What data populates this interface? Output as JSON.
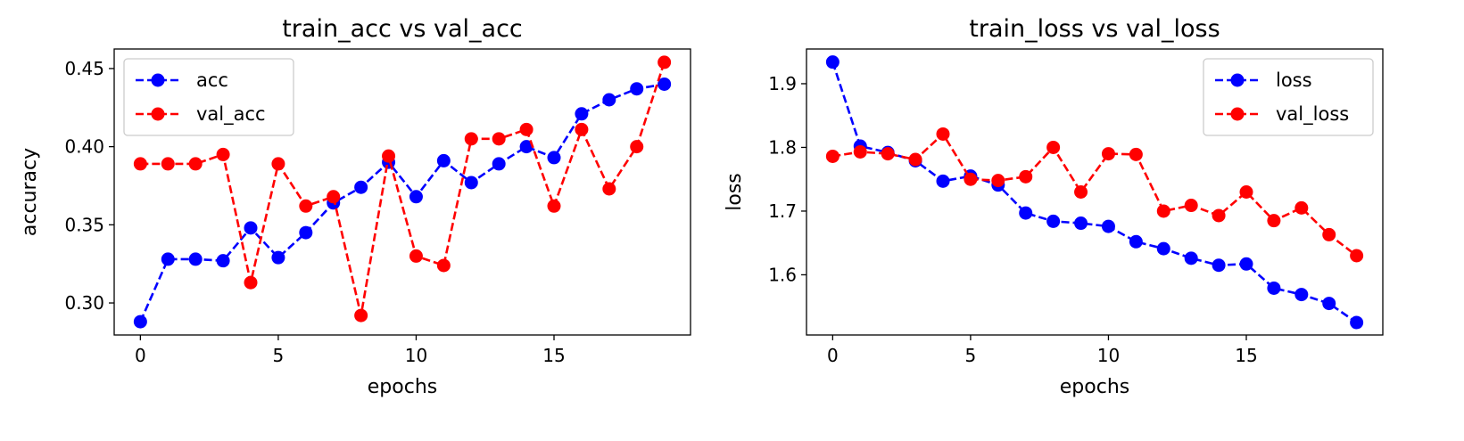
{
  "chart_data": [
    {
      "type": "line",
      "title": "train_acc vs val_acc",
      "xlabel": "epochs",
      "ylabel": "accuracy",
      "xlim": [
        -0.95,
        19.95
      ],
      "ylim": [
        0.2795,
        0.4625
      ],
      "xticks": [
        0,
        5,
        10,
        15
      ],
      "yticks": [
        0.3,
        0.35,
        0.4,
        0.45
      ],
      "ytick_labels": [
        "0.30",
        "0.35",
        "0.40",
        "0.45"
      ],
      "grid": false,
      "legend_position": "top-left",
      "x": [
        0,
        1,
        2,
        3,
        4,
        5,
        6,
        7,
        8,
        9,
        10,
        11,
        12,
        13,
        14,
        15,
        16,
        17,
        18,
        19
      ],
      "series": [
        {
          "name": "acc",
          "color": "#0000ff",
          "values": [
            0.288,
            0.328,
            0.328,
            0.327,
            0.348,
            0.329,
            0.345,
            0.364,
            0.374,
            0.39,
            0.368,
            0.391,
            0.377,
            0.389,
            0.4,
            0.393,
            0.421,
            0.43,
            0.437,
            0.44
          ]
        },
        {
          "name": "val_acc",
          "color": "#ff0000",
          "values": [
            0.389,
            0.389,
            0.389,
            0.395,
            0.313,
            0.389,
            0.362,
            0.368,
            0.292,
            0.394,
            0.33,
            0.324,
            0.405,
            0.405,
            0.411,
            0.362,
            0.411,
            0.373,
            0.4,
            0.454
          ]
        }
      ]
    },
    {
      "type": "line",
      "title": "train_loss vs val_loss",
      "xlabel": "epochs",
      "ylabel": "loss",
      "xlim": [
        -0.95,
        19.95
      ],
      "ylim": [
        1.5055,
        1.9545
      ],
      "xticks": [
        0,
        5,
        10,
        15
      ],
      "yticks": [
        1.6,
        1.7,
        1.8,
        1.9
      ],
      "ytick_labels": [
        "1.6",
        "1.7",
        "1.8",
        "1.9"
      ],
      "grid": false,
      "legend_position": "top-right",
      "x": [
        0,
        1,
        2,
        3,
        4,
        5,
        6,
        7,
        8,
        9,
        10,
        11,
        12,
        13,
        14,
        15,
        16,
        17,
        18,
        19
      ],
      "series": [
        {
          "name": "loss",
          "color": "#0000ff",
          "values": [
            1.934,
            1.802,
            1.792,
            1.779,
            1.747,
            1.755,
            1.741,
            1.697,
            1.684,
            1.681,
            1.676,
            1.652,
            1.641,
            1.626,
            1.615,
            1.617,
            1.579,
            1.569,
            1.555,
            1.525
          ]
        },
        {
          "name": "val_loss",
          "color": "#ff0000",
          "values": [
            1.786,
            1.793,
            1.79,
            1.781,
            1.821,
            1.75,
            1.748,
            1.754,
            1.8,
            1.73,
            1.79,
            1.789,
            1.7,
            1.709,
            1.693,
            1.73,
            1.685,
            1.705,
            1.663,
            1.63
          ]
        }
      ]
    }
  ]
}
